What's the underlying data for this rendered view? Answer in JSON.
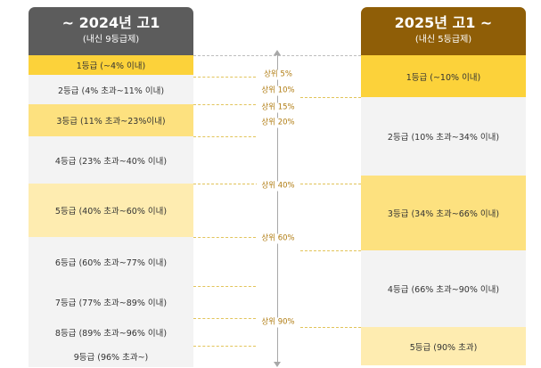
{
  "left_header": {
    "title": "~ 2024년 고1",
    "subtitle": "(내신 9등급제)"
  },
  "right_header": {
    "title": "2025년 고1 ~",
    "subtitle": "(내신 5등급제)"
  },
  "left_grades": [
    {
      "label": "1등급 (~4% 이내)",
      "color": "#fcd23a"
    },
    {
      "label": "2등급 (4% 초과~11% 이내)",
      "color": "#f3f3f3"
    },
    {
      "label": "3등급 (11% 초과~23%이내)",
      "color": "#fde17f"
    },
    {
      "label": "4등급 (23% 초과~40% 이내)",
      "color": "#f3f3f3"
    },
    {
      "label": "5등급 (40% 초과~60% 이내)",
      "color": "#feecb0"
    },
    {
      "label": "6등급 (60% 초과~77% 이내)",
      "color": "#f3f3f3"
    },
    {
      "label": "7등급 (77% 초과~89% 이내)",
      "color": "#f3f3f3"
    },
    {
      "label": "8등급 (89% 초과~96% 이내)",
      "color": "#f3f3f3"
    },
    {
      "label": "9등급 (96% 초과~)",
      "color": "#f3f3f3"
    }
  ],
  "right_grades": [
    {
      "label": "1등급 (~10% 이내)",
      "color": "#fcd23a"
    },
    {
      "label": "2등급 (10% 초과~34% 이내)",
      "color": "#f3f3f3"
    },
    {
      "label": "3등급 (34% 초과~66% 이내)",
      "color": "#fde17f"
    },
    {
      "label": "4등급 (66% 초과~90% 이내)",
      "color": "#f3f3f3"
    },
    {
      "label": "5등급 (90% 초과)",
      "color": "#feecb0"
    }
  ],
  "percentiles": [
    "상위 5%",
    "상위 10%",
    "상위 15%",
    "상위 20%",
    "상위 40%",
    "상위 60%",
    "상위 90%"
  ]
}
